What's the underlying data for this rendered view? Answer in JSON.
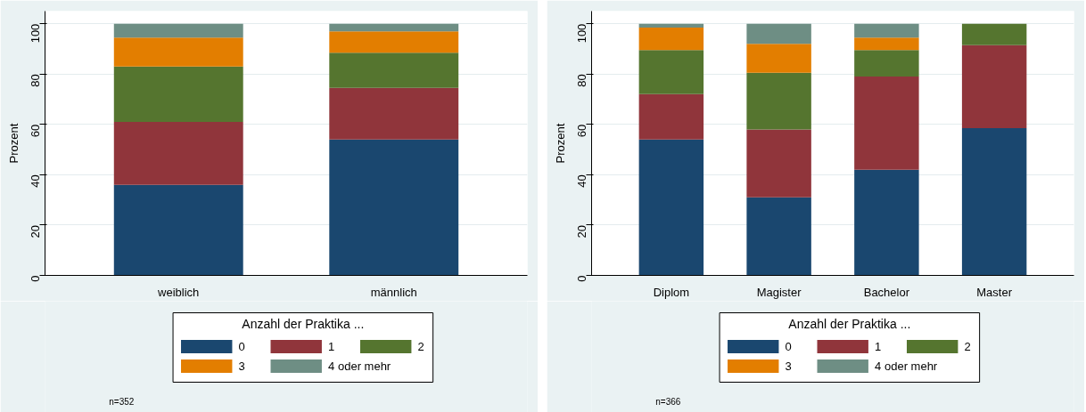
{
  "chart_data": [
    {
      "type": "bar",
      "stacked": true,
      "ylabel": "Prozent",
      "legend_title": "Anzahl der Praktika ...",
      "legend": "bottom",
      "grid": "y",
      "categories": [
        "weiblich",
        "männlich"
      ],
      "ylim": [
        0,
        105
      ],
      "yticks": [
        0,
        20,
        40,
        60,
        80,
        100
      ],
      "annotations": [
        "n=352"
      ],
      "series": [
        {
          "name": "0",
          "color": "#1a476f",
          "values": [
            36,
            54
          ]
        },
        {
          "name": "1",
          "color": "#90353b",
          "values": [
            25,
            20.5
          ]
        },
        {
          "name": "2",
          "color": "#55752f",
          "values": [
            22,
            14
          ]
        },
        {
          "name": "3",
          "color": "#e37e00",
          "values": [
            11.5,
            8.5
          ]
        },
        {
          "name": "4 oder mehr",
          "color": "#6e8e84",
          "values": [
            5.5,
            3
          ]
        }
      ]
    },
    {
      "type": "bar",
      "stacked": true,
      "ylabel": "Prozent",
      "legend_title": "Anzahl der Praktika ...",
      "legend": "bottom",
      "grid": "y",
      "categories": [
        "Diplom",
        "Magister",
        "Bachelor",
        "Master"
      ],
      "ylim": [
        0,
        105
      ],
      "yticks": [
        0,
        20,
        40,
        60,
        80,
        100
      ],
      "annotations": [
        "n=366"
      ],
      "series": [
        {
          "name": "0",
          "color": "#1a476f",
          "values": [
            54,
            31,
            42,
            58.5
          ]
        },
        {
          "name": "1",
          "color": "#90353b",
          "values": [
            18,
            27,
            37,
            33
          ]
        },
        {
          "name": "2",
          "color": "#55752f",
          "values": [
            17.5,
            22.5,
            10.5,
            8.5
          ]
        },
        {
          "name": "3",
          "color": "#e37e00",
          "values": [
            9,
            11.5,
            5,
            0
          ]
        },
        {
          "name": "4 oder mehr",
          "color": "#6e8e84",
          "values": [
            1.5,
            8,
            5.5,
            0
          ]
        }
      ]
    }
  ]
}
